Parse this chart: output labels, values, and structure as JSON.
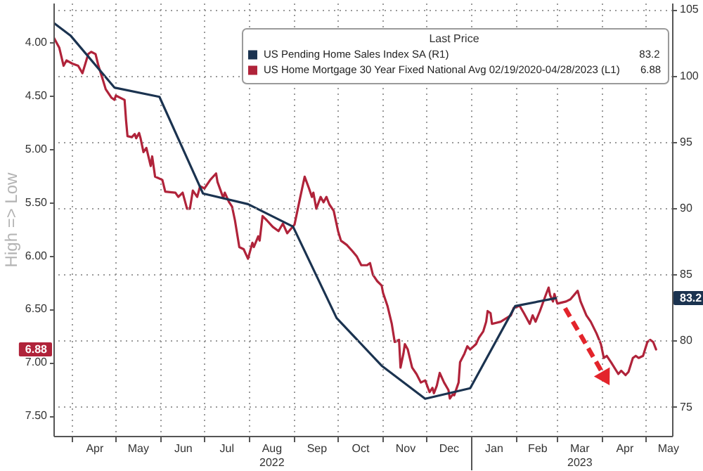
{
  "chart_data": {
    "type": "line",
    "ylabel": "High => Low",
    "legend_title": "Last Price",
    "legend": "top right",
    "grid": true,
    "xlim": [
      "2022-03-19",
      "2023-05-19"
    ],
    "xticks": [
      {
        "value": "2022-04-01",
        "label": null
      },
      {
        "value": "2022-04-16",
        "label": "Apr"
      },
      {
        "value": "2022-05-01",
        "label": null
      },
      {
        "value": "2022-05-16",
        "label": "May"
      },
      {
        "value": "2022-06-01",
        "label": null
      },
      {
        "value": "2022-06-16",
        "label": "Jun"
      },
      {
        "value": "2022-07-01",
        "label": null
      },
      {
        "value": "2022-07-16",
        "label": "Jul"
      },
      {
        "value": "2022-08-01",
        "label": null
      },
      {
        "value": "2022-08-16",
        "label": "Aug\n2022"
      },
      {
        "value": "2022-09-01",
        "label": null
      },
      {
        "value": "2022-09-16",
        "label": "Sep"
      },
      {
        "value": "2022-10-01",
        "label": null
      },
      {
        "value": "2022-10-16",
        "label": "Oct"
      },
      {
        "value": "2022-11-01",
        "label": null
      },
      {
        "value": "2022-11-16",
        "label": "Nov"
      },
      {
        "value": "2022-12-01",
        "label": null
      },
      {
        "value": "2022-12-16",
        "label": "Dec"
      },
      {
        "value": "2023-01-01",
        "label": null
      },
      {
        "value": "2023-01-16",
        "label": "Jan"
      },
      {
        "value": "2023-02-01",
        "label": null
      },
      {
        "value": "2023-02-15",
        "label": "Feb"
      },
      {
        "value": "2023-03-01",
        "label": null
      },
      {
        "value": "2023-03-16",
        "label": "Mar\n2023"
      },
      {
        "value": "2023-04-01",
        "label": null
      },
      {
        "value": "2023-04-16",
        "label": "Apr"
      },
      {
        "value": "2023-05-01",
        "label": null
      },
      {
        "value": "2023-05-16",
        "label": "May"
      }
    ],
    "ylim": [
      7.69,
      3.63
    ],
    "yticks": [
      {
        "value": 4,
        "label": "4.00"
      },
      {
        "value": 4.5,
        "label": "4.50"
      },
      {
        "value": 5,
        "label": "5.00"
      },
      {
        "value": 5.5,
        "label": "5.50"
      },
      {
        "value": 6,
        "label": "6.00"
      },
      {
        "value": 6.5,
        "label": "6.50"
      },
      6.88,
      {
        "value": 7,
        "label": "7.00"
      },
      {
        "value": 7.5,
        "label": "7.50"
      }
    ],
    "y2lim": [
      72.8,
      105.5
    ],
    "y2ticks": [
      75,
      80,
      83.2,
      85,
      90,
      95,
      100,
      105
    ],
    "series": [
      {
        "name": "US Pending Home Sales Index SA (R1) 83.2",
        "color": "#1b3350",
        "axis": "y2",
        "x": [
          "2022-03-19",
          "2022-03-31",
          "2022-04-30",
          "2022-05-31",
          "2022-06-30",
          "2022-07-31",
          "2022-08-31",
          "2022-09-30",
          "2022-10-31",
          "2022-11-30",
          "2022-12-31",
          "2023-01-31",
          "2023-02-28"
        ],
        "values": [
          104.0,
          103.0,
          99.1,
          98.4,
          91.1,
          90.3,
          88.6,
          81.7,
          78.1,
          75.6,
          76.4,
          82.6,
          83.2
        ]
      },
      {
        "name": "US Home Mortgage 30 Year Fixed National Avg 02/19/2020-04/28/2023 (L1) 6.88",
        "color": "#b0233a",
        "x": [
          "2022-03-19",
          "2022-03-23",
          "2022-03-26",
          "2022-03-28",
          "2022-04-01",
          "2022-04-05",
          "2022-04-08",
          "2022-04-12",
          "2022-04-14",
          "2022-04-17",
          "2022-04-19",
          "2022-04-22",
          "2022-04-24",
          "2022-04-28",
          "2022-04-30",
          "2022-05-01",
          "2022-05-07",
          "2022-05-08",
          "2022-05-09",
          "2022-05-12",
          "2022-05-14",
          "2022-05-15",
          "2022-05-17",
          "2022-05-18",
          "2022-05-20",
          "2022-05-22",
          "2022-05-25",
          "2022-05-26",
          "2022-05-28",
          "2022-06-02",
          "2022-06-04",
          "2022-06-11",
          "2022-06-13",
          "2022-06-16",
          "2022-06-19",
          "2022-06-21",
          "2022-06-23",
          "2022-06-26",
          "2022-06-28",
          "2022-07-01",
          "2022-07-05",
          "2022-07-09",
          "2022-07-10",
          "2022-07-14",
          "2022-07-15",
          "2022-07-18",
          "2022-07-20",
          "2022-07-22",
          "2022-07-25",
          "2022-07-28",
          "2022-07-31",
          "2022-08-03",
          "2022-08-04",
          "2022-08-07",
          "2022-08-08",
          "2022-08-10",
          "2022-08-13",
          "2022-08-17",
          "2022-08-21",
          "2022-08-24",
          "2022-08-27",
          "2022-09-01",
          "2022-09-05",
          "2022-09-08",
          "2022-09-11",
          "2022-09-13",
          "2022-09-14",
          "2022-09-16",
          "2022-09-19",
          "2022-09-21",
          "2022-09-23",
          "2022-09-25",
          "2022-09-28",
          "2022-10-01",
          "2022-10-03",
          "2022-10-07",
          "2022-10-11",
          "2022-10-14",
          "2022-10-17",
          "2022-10-21",
          "2022-10-23",
          "2022-10-25",
          "2022-10-28",
          "2022-10-31",
          "2022-11-01",
          "2022-11-04",
          "2022-11-07",
          "2022-11-09",
          "2022-11-12",
          "2022-11-13",
          "2022-11-15",
          "2022-11-16",
          "2022-11-18",
          "2022-11-21",
          "2022-11-24",
          "2022-11-27",
          "2022-11-30",
          "2022-12-03",
          "2022-12-05",
          "2022-12-06",
          "2022-12-08",
          "2022-12-10",
          "2022-12-13",
          "2022-12-16",
          "2022-12-17",
          "2022-12-19",
          "2022-12-20",
          "2022-12-23",
          "2022-12-24",
          "2022-12-27",
          "2022-12-29",
          "2022-12-31",
          "2023-01-04",
          "2023-01-06",
          "2023-01-09",
          "2023-01-11",
          "2023-01-12",
          "2023-01-14",
          "2023-01-15",
          "2023-01-21",
          "2023-01-28",
          "2023-01-30",
          "2023-02-03",
          "2023-02-06",
          "2023-02-10",
          "2023-02-12",
          "2023-02-14",
          "2023-02-17",
          "2023-02-21",
          "2023-02-23",
          "2023-02-24",
          "2023-02-26",
          "2023-02-27",
          "2023-03-01",
          "2023-03-07",
          "2023-03-10",
          "2023-03-15",
          "2023-03-17",
          "2023-03-21",
          "2023-03-24",
          "2023-03-28",
          "2023-03-31",
          "2023-04-02",
          "2023-04-04",
          "2023-04-07",
          "2023-04-12",
          "2023-04-14",
          "2023-04-17",
          "2023-04-19",
          "2023-04-22",
          "2023-04-24",
          "2023-04-26",
          "2023-04-29",
          "2023-05-02",
          "2023-05-04",
          "2023-05-06",
          "2023-05-08"
        ],
        "values": [
          3.95,
          4.05,
          4.22,
          4.17,
          4.2,
          4.22,
          4.29,
          4.11,
          4.09,
          4.11,
          4.22,
          4.35,
          4.44,
          4.52,
          4.54,
          4.5,
          4.54,
          4.73,
          4.88,
          4.89,
          4.86,
          4.9,
          4.85,
          4.9,
          5.03,
          4.99,
          5.16,
          5.07,
          5.26,
          5.29,
          5.4,
          5.41,
          5.45,
          5.41,
          5.56,
          5.56,
          5.39,
          5.45,
          5.35,
          5.37,
          5.29,
          5.23,
          5.31,
          5.46,
          5.41,
          5.5,
          5.54,
          5.67,
          5.92,
          5.94,
          6.03,
          5.88,
          5.92,
          5.82,
          5.86,
          5.63,
          5.67,
          5.73,
          5.77,
          5.7,
          5.79,
          5.71,
          5.45,
          5.26,
          5.37,
          5.45,
          5.41,
          5.56,
          5.45,
          5.5,
          5.45,
          5.52,
          5.58,
          5.77,
          5.86,
          5.9,
          5.96,
          6.01,
          6.09,
          6.09,
          6.07,
          6.18,
          6.24,
          6.28,
          6.35,
          6.47,
          6.64,
          6.81,
          6.79,
          7.05,
          6.92,
          6.83,
          6.88,
          7.05,
          7.11,
          7.19,
          7.17,
          7.28,
          7.24,
          7.29,
          7.22,
          7.1,
          7.19,
          7.26,
          7.34,
          7.3,
          7.31,
          7.19,
          7.0,
          6.92,
          6.85,
          6.88,
          6.83,
          6.77,
          6.71,
          6.62,
          6.52,
          6.54,
          6.64,
          6.62,
          6.56,
          6.49,
          6.47,
          6.54,
          6.64,
          6.56,
          6.62,
          6.52,
          6.37,
          6.3,
          6.37,
          6.43,
          6.36,
          6.45,
          6.43,
          6.41,
          6.33,
          6.43,
          6.56,
          6.62,
          6.73,
          6.83,
          6.96,
          6.94,
          7.0,
          7.11,
          7.08,
          7.12,
          7.09,
          6.96,
          6.94,
          6.96,
          6.94,
          6.81,
          6.79,
          6.81,
          6.88
        ]
      }
    ]
  }
}
